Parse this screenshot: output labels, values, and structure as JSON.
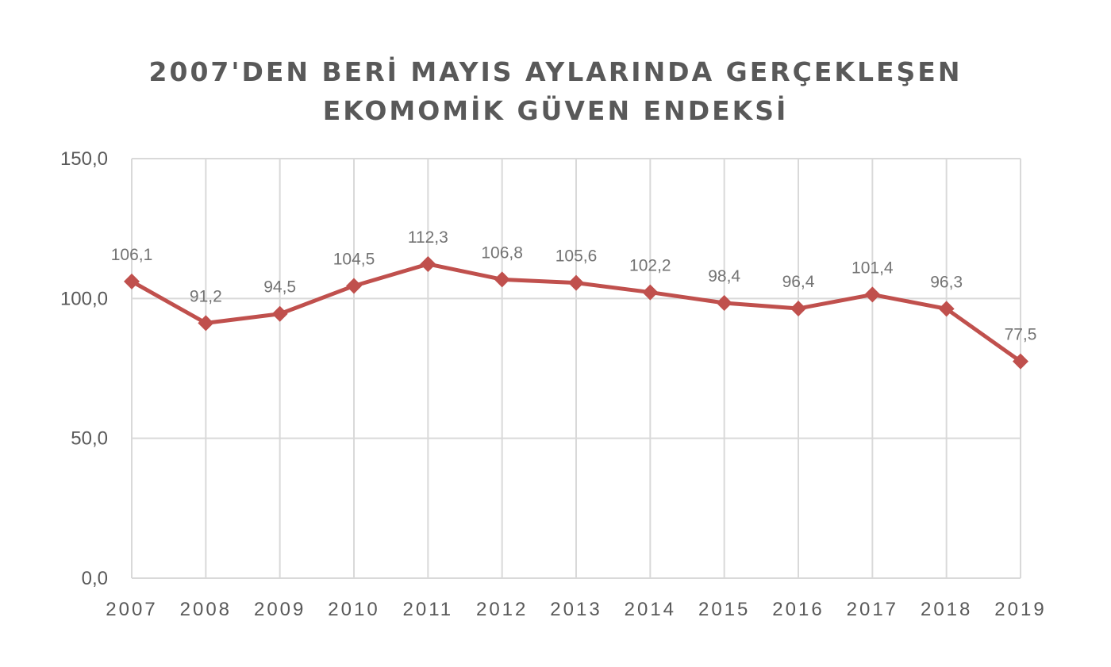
{
  "chart_data": {
    "type": "line",
    "title_lines": [
      "2007'DEN BERİ MAYIS AYLARINDA GERÇEKLEŞEN",
      "EKOMOMİK GÜVEN ENDEKSİ"
    ],
    "categories": [
      "2007",
      "2008",
      "2009",
      "2010",
      "2011",
      "2012",
      "2013",
      "2014",
      "2015",
      "2016",
      "2017",
      "2018",
      "2019"
    ],
    "values": [
      106.1,
      91.2,
      94.5,
      104.5,
      112.3,
      106.8,
      105.6,
      102.2,
      98.4,
      96.4,
      101.4,
      96.3,
      77.5
    ],
    "data_labels": [
      "106,1",
      "91,2",
      "94,5",
      "104,5",
      "112,3",
      "106,8",
      "105,6",
      "102,2",
      "98,4",
      "96,4",
      "101,4",
      "96,3",
      "77,5"
    ],
    "y_ticks": [
      0,
      50,
      100,
      150
    ],
    "y_tick_labels": [
      "0,0",
      "50,0",
      "100,0",
      "150,0"
    ],
    "ylim": [
      0,
      150
    ],
    "grid": true,
    "legend": "none",
    "colors": {
      "series": "#c0504d",
      "grid": "#d9d9d9",
      "text": "#595959"
    }
  }
}
